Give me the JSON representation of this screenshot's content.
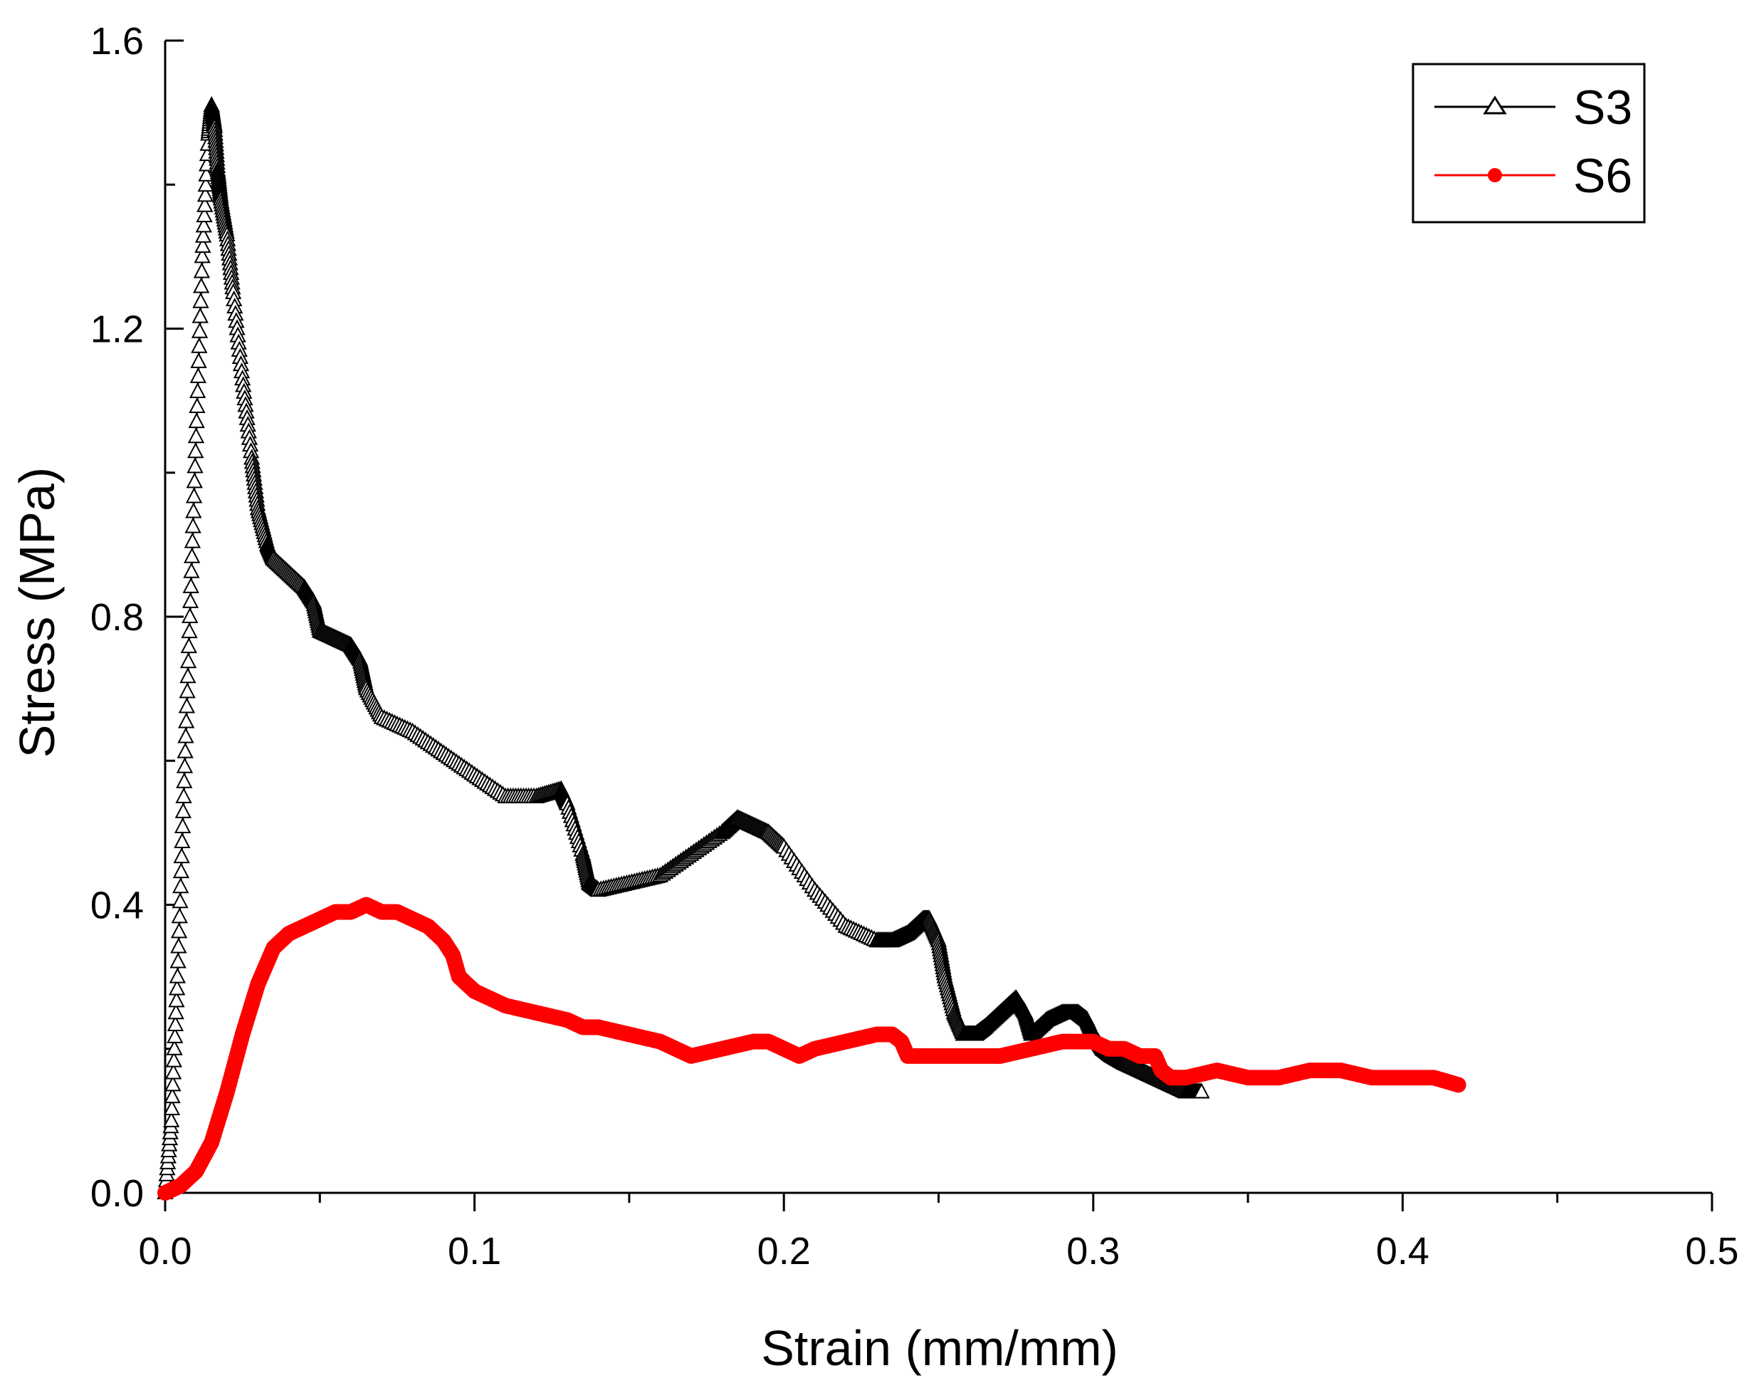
{
  "chart_data": {
    "type": "line",
    "xlabel": "Strain (mm/mm)",
    "ylabel": "Stress (MPa)",
    "xlim": [
      0,
      0.5
    ],
    "ylim": [
      0,
      1.6
    ],
    "x_ticks": [
      "0.0",
      "0.1",
      "0.2",
      "0.3",
      "0.4",
      "0.5"
    ],
    "y_ticks": [
      "0.0",
      "0.4",
      "0.8",
      "1.2",
      "1.6"
    ],
    "grid": false,
    "legend_position": "top-right",
    "series": [
      {
        "name": "S3",
        "color": "#000000",
        "marker": "open-triangle",
        "x": [
          0.0,
          0.002,
          0.004,
          0.006,
          0.008,
          0.01,
          0.012,
          0.014,
          0.015,
          0.016,
          0.017,
          0.018,
          0.02,
          0.022,
          0.025,
          0.028,
          0.03,
          0.033,
          0.035,
          0.04,
          0.045,
          0.048,
          0.05,
          0.055,
          0.06,
          0.063,
          0.065,
          0.07,
          0.08,
          0.09,
          0.1,
          0.11,
          0.12,
          0.128,
          0.13,
          0.135,
          0.137,
          0.14,
          0.15,
          0.16,
          0.17,
          0.18,
          0.185,
          0.19,
          0.195,
          0.2,
          0.21,
          0.22,
          0.23,
          0.235,
          0.24,
          0.245,
          0.247,
          0.25,
          0.252,
          0.255,
          0.258,
          0.262,
          0.265,
          0.27,
          0.275,
          0.278,
          0.28,
          0.285,
          0.29,
          0.295,
          0.298,
          0.3,
          0.303,
          0.306,
          0.31,
          0.315,
          0.32,
          0.325,
          0.33,
          0.335
        ],
        "y": [
          0.0,
          0.1,
          0.3,
          0.55,
          0.8,
          1.05,
          1.3,
          1.47,
          1.51,
          1.48,
          1.42,
          1.38,
          1.33,
          1.25,
          1.13,
          1.02,
          0.95,
          0.9,
          0.88,
          0.86,
          0.84,
          0.82,
          0.78,
          0.77,
          0.76,
          0.74,
          0.7,
          0.66,
          0.64,
          0.61,
          0.58,
          0.55,
          0.55,
          0.56,
          0.54,
          0.47,
          0.43,
          0.42,
          0.43,
          0.44,
          0.47,
          0.5,
          0.52,
          0.51,
          0.5,
          0.48,
          0.42,
          0.37,
          0.35,
          0.35,
          0.36,
          0.38,
          0.38,
          0.35,
          0.3,
          0.25,
          0.22,
          0.22,
          0.23,
          0.25,
          0.27,
          0.25,
          0.22,
          0.24,
          0.25,
          0.25,
          0.24,
          0.22,
          0.2,
          0.19,
          0.18,
          0.17,
          0.16,
          0.15,
          0.14,
          0.14
        ]
      },
      {
        "name": "S6",
        "color": "#ff0000",
        "marker": "filled-circle",
        "x": [
          0.0,
          0.005,
          0.01,
          0.015,
          0.02,
          0.025,
          0.03,
          0.035,
          0.04,
          0.045,
          0.05,
          0.055,
          0.06,
          0.065,
          0.07,
          0.075,
          0.08,
          0.085,
          0.09,
          0.093,
          0.095,
          0.1,
          0.11,
          0.12,
          0.13,
          0.135,
          0.14,
          0.15,
          0.16,
          0.165,
          0.17,
          0.18,
          0.19,
          0.195,
          0.2,
          0.205,
          0.21,
          0.22,
          0.23,
          0.235,
          0.238,
          0.24,
          0.25,
          0.26,
          0.27,
          0.28,
          0.29,
          0.3,
          0.305,
          0.31,
          0.315,
          0.32,
          0.322,
          0.325,
          0.33,
          0.34,
          0.35,
          0.36,
          0.37,
          0.38,
          0.39,
          0.4,
          0.41,
          0.418
        ],
        "y": [
          0.0,
          0.01,
          0.03,
          0.07,
          0.14,
          0.22,
          0.29,
          0.34,
          0.36,
          0.37,
          0.38,
          0.39,
          0.39,
          0.4,
          0.39,
          0.39,
          0.38,
          0.37,
          0.35,
          0.33,
          0.3,
          0.28,
          0.26,
          0.25,
          0.24,
          0.23,
          0.23,
          0.22,
          0.21,
          0.2,
          0.19,
          0.2,
          0.21,
          0.21,
          0.2,
          0.19,
          0.2,
          0.21,
          0.22,
          0.22,
          0.21,
          0.19,
          0.19,
          0.19,
          0.19,
          0.2,
          0.21,
          0.21,
          0.2,
          0.2,
          0.19,
          0.19,
          0.17,
          0.16,
          0.16,
          0.17,
          0.16,
          0.16,
          0.17,
          0.17,
          0.16,
          0.16,
          0.16,
          0.15
        ]
      }
    ]
  }
}
